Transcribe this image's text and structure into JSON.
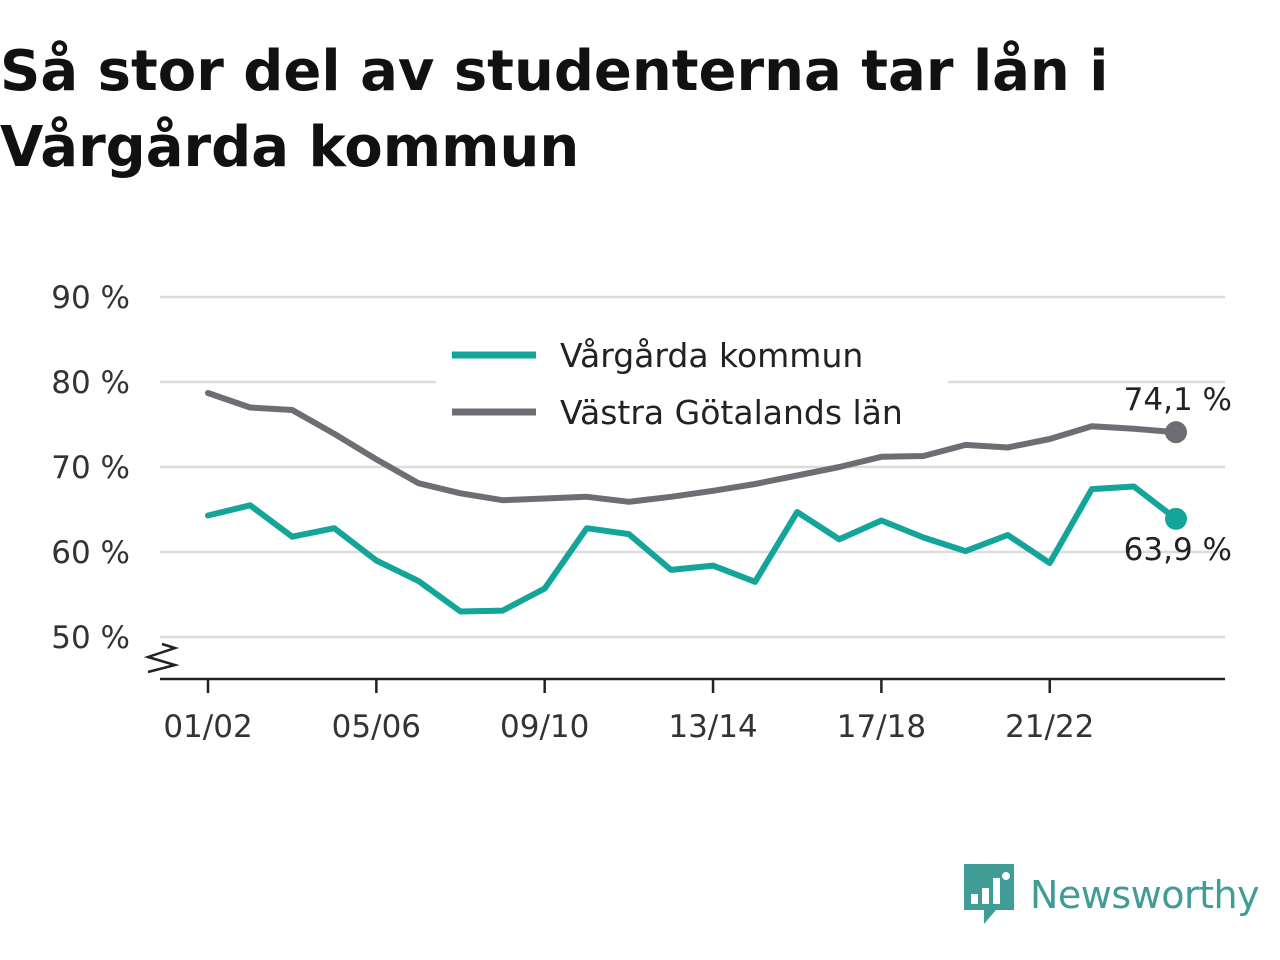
{
  "title": "Så stor del av studenterna tar lån i Vårgårda kommun",
  "brand": {
    "name": "Newsworthy",
    "logo_icon": "newsworthy-chart-bubble-icon",
    "color": "#3f9c96"
  },
  "chart_data": {
    "type": "line",
    "title": "Så stor del av studenterna tar lån i Vårgårda kommun",
    "xlabel": "",
    "ylabel": "",
    "ylim": [
      50,
      90
    ],
    "yticks": [
      50,
      60,
      70,
      80,
      90
    ],
    "ytick_labels": [
      "50 %",
      "60 %",
      "70 %",
      "80 %",
      "90 %"
    ],
    "y_axis_break": true,
    "grid": true,
    "legend_position": "top-center",
    "categories": [
      "01/02",
      "02/03",
      "03/04",
      "04/05",
      "05/06",
      "06/07",
      "07/08",
      "08/09",
      "09/10",
      "10/11",
      "11/12",
      "12/13",
      "13/14",
      "14/15",
      "15/16",
      "16/17",
      "17/18",
      "18/19",
      "19/20",
      "20/21",
      "21/22",
      "22/23",
      "23/24",
      "24/25"
    ],
    "xtick_labels": [
      "01/02",
      "05/06",
      "09/10",
      "13/14",
      "17/18",
      "21/22"
    ],
    "series": [
      {
        "name": "Vårgårda kommun",
        "color": "#14a59a",
        "values": [
          64.3,
          65.5,
          61.8,
          62.8,
          59.0,
          56.6,
          53.0,
          53.1,
          55.7,
          62.8,
          62.1,
          57.9,
          58.4,
          56.5,
          64.7,
          61.5,
          63.7,
          61.7,
          60.1,
          62.0,
          58.7,
          67.4,
          67.7,
          63.9
        ],
        "end_label": "63,9 %"
      },
      {
        "name": "Västra Götalands län",
        "color": "#6e6d74",
        "values": [
          78.7,
          77.0,
          76.7,
          73.9,
          70.9,
          68.1,
          66.9,
          66.1,
          66.3,
          66.5,
          65.9,
          66.5,
          67.2,
          68.0,
          69.0,
          70.0,
          71.2,
          71.3,
          72.6,
          72.3,
          73.3,
          74.8,
          74.5,
          74.1
        ],
        "end_label": "74,1 %"
      }
    ]
  }
}
